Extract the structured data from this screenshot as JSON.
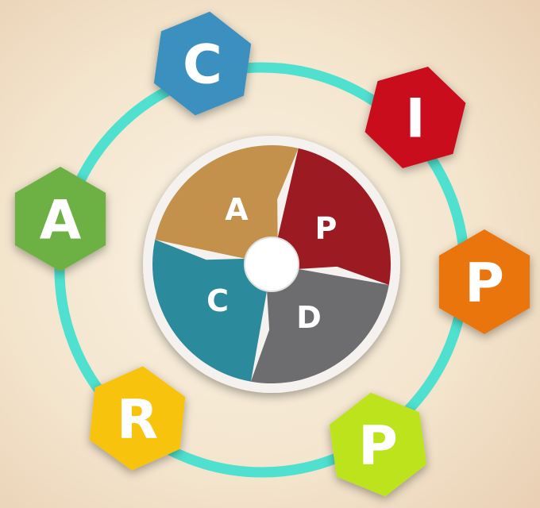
{
  "ring": {
    "nodes": [
      {
        "label": "C"
      },
      {
        "label": "I"
      },
      {
        "label": "P"
      },
      {
        "label": "P"
      },
      {
        "label": "R"
      },
      {
        "label": "A"
      }
    ]
  },
  "cycle": {
    "segments": [
      {
        "label": "A"
      },
      {
        "label": "P"
      },
      {
        "label": "D"
      },
      {
        "label": "C"
      }
    ]
  }
}
